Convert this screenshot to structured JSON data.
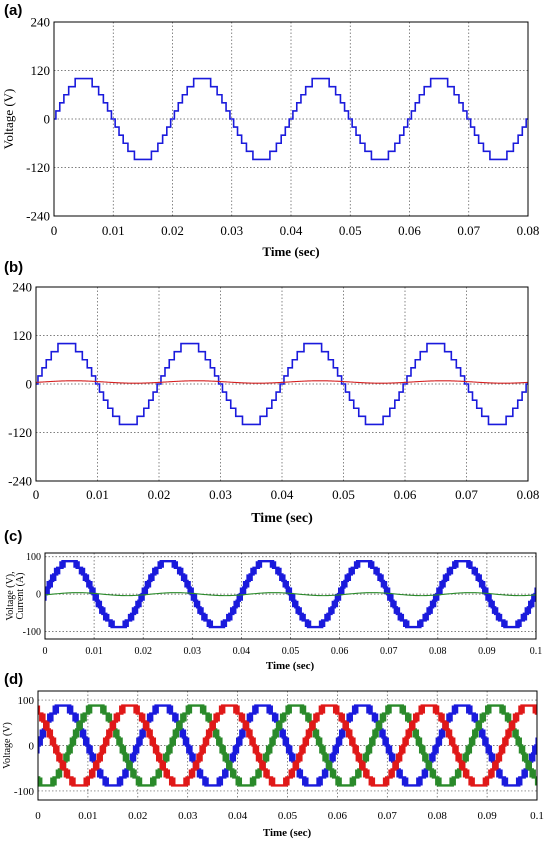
{
  "chart_data": [
    {
      "panel": "(a)",
      "type": "line",
      "xlabel": "Time (sec)",
      "ylabel": "Voltage (V)",
      "xlim": [
        0,
        0.08
      ],
      "ylim": [
        -240,
        240
      ],
      "xticks": [
        0,
        0.01,
        0.02,
        0.03,
        0.04,
        0.05,
        0.06,
        0.07,
        0.08
      ],
      "xtick_labels": [
        "0",
        "0.01",
        "0.02",
        "0.03",
        "0.04",
        "0.05",
        "0.06",
        "0.07",
        "0.08"
      ],
      "yticks": [
        -240,
        -120,
        0,
        120,
        240
      ],
      "ytick_labels": [
        "-240",
        "-120",
        "0",
        "120",
        "240"
      ],
      "grid": true,
      "series": [
        {
          "kind": "staircase",
          "amplitude": 100,
          "levels": 5,
          "frequency": 50,
          "phase_deg": 0,
          "color": "#1a1adc"
        }
      ]
    },
    {
      "panel": "(b)",
      "type": "line",
      "xlabel": "Time (sec)",
      "ylabel": "",
      "xlim": [
        0,
        0.08
      ],
      "ylim": [
        -240,
        240
      ],
      "xticks": [
        0,
        0.01,
        0.02,
        0.03,
        0.04,
        0.05,
        0.06,
        0.07,
        0.08
      ],
      "xtick_labels": [
        "0",
        "0.01",
        "0.02",
        "0.03",
        "0.04",
        "0.05",
        "0.06",
        "0.07",
        "0.08"
      ],
      "yticks": [
        -240,
        -120,
        0,
        120,
        240
      ],
      "ytick_labels": [
        "-240",
        "-120",
        "0",
        "120",
        "240"
      ],
      "grid": true,
      "series": [
        {
          "kind": "staircase",
          "amplitude": 100,
          "levels": 5,
          "frequency": 50,
          "phase_deg": 0,
          "color": "#1a1adc"
        },
        {
          "kind": "sine",
          "amplitude": 3,
          "offset": 5,
          "frequency": 50,
          "phase_deg": -20,
          "color": "#d42020"
        }
      ]
    },
    {
      "panel": "(c)",
      "type": "line",
      "xlabel": "Time (sec)",
      "ylabel": "Voltage (V),\nCurrent (A)",
      "xlim": [
        0,
        0.1
      ],
      "ylim": [
        -120,
        110
      ],
      "xticks": [
        0,
        0.01,
        0.02,
        0.03,
        0.04,
        0.05,
        0.06,
        0.07,
        0.08,
        0.09,
        0.1
      ],
      "xtick_labels": [
        "0",
        "0.01",
        "0.02",
        "0.03",
        "0.04",
        "0.05",
        "0.06",
        "0.07",
        "0.08",
        "0.09",
        "0.1"
      ],
      "yticks": [
        -100,
        0,
        100
      ],
      "ytick_labels": [
        "-100",
        "0",
        "100"
      ],
      "grid": true,
      "series": [
        {
          "kind": "staircase-pwm",
          "amplitude": 88,
          "levels": 5,
          "frequency": 50,
          "phase_deg": 0,
          "color": "#1a1adc"
        },
        {
          "kind": "sine",
          "amplitude": 4,
          "offset": 0,
          "frequency": 50,
          "phase_deg": -30,
          "color": "#2a8a2a"
        }
      ]
    },
    {
      "panel": "(d)",
      "type": "line",
      "xlabel": "Time (sec)",
      "ylabel": "Voltage (V)",
      "xlim": [
        0,
        0.1
      ],
      "ylim": [
        -120,
        120
      ],
      "xticks": [
        0,
        0.01,
        0.02,
        0.03,
        0.04,
        0.05,
        0.06,
        0.07,
        0.08,
        0.09,
        0.1
      ],
      "xtick_labels": [
        "0",
        "0.01",
        "0.02",
        "0.03",
        "0.04",
        "0.05",
        "0.06",
        "0.07",
        "0.08",
        "0.09",
        "0.1"
      ],
      "yticks": [
        -100,
        0,
        100
      ],
      "ytick_labels": [
        "-100",
        "0",
        "100"
      ],
      "grid": true,
      "series": [
        {
          "kind": "staircase-pwm",
          "amplitude": 88,
          "levels": 5,
          "frequency": 50,
          "phase_deg": 0,
          "color": "#1a1adc"
        },
        {
          "kind": "staircase-pwm",
          "amplitude": 88,
          "levels": 5,
          "frequency": 50,
          "phase_deg": -120,
          "color": "#2a8a2a"
        },
        {
          "kind": "staircase-pwm",
          "amplitude": 88,
          "levels": 5,
          "frequency": 50,
          "phase_deg": 120,
          "color": "#e01818"
        }
      ]
    }
  ]
}
